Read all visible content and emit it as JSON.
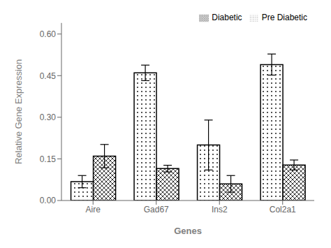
{
  "chart_data": {
    "type": "bar",
    "categories": [
      "Aire",
      "Gad67",
      "Ins2",
      "Col2a1"
    ],
    "series": [
      {
        "name": "Pre Diabetic",
        "color": "#ffffff",
        "values": [
          0.068,
          0.46,
          0.2,
          0.49
        ],
        "errors": [
          0.022,
          0.028,
          0.09,
          0.038
        ]
      },
      {
        "name": "Diabetic",
        "color": "#ffffff",
        "values": [
          0.16,
          0.115,
          0.06,
          0.128
        ],
        "errors": [
          0.042,
          0.012,
          0.03,
          0.018
        ]
      }
    ],
    "xlabel": "Genes",
    "ylabel": "Relative Gene Expression",
    "ylim": [
      0.0,
      0.64
    ],
    "yticks": [
      {
        "value": 0,
        "label": "0.00"
      },
      0.15,
      {
        "value": 0.3,
        "label": "0.30"
      },
      0.45,
      {
        "value": 0.6,
        "label": "0.60"
      }
    ],
    "grid": false,
    "legend": "upper right"
  }
}
